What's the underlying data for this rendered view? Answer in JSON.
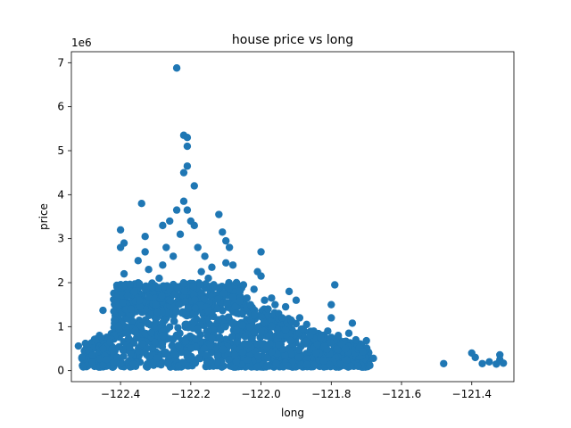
{
  "chart_data": {
    "type": "scatter",
    "title": "house price vs long",
    "xlabel": "long",
    "ylabel": "price",
    "y_scale_label": "1e6",
    "xlim": [
      -122.54,
      -121.28
    ],
    "ylim": [
      -250000,
      7250000
    ],
    "x_ticks": [
      -122.4,
      -122.2,
      -122.0,
      -121.8,
      -121.6,
      -121.4
    ],
    "x_tick_labels": [
      "−122.4",
      "−122.2",
      "−122.0",
      "−121.8",
      "−121.6",
      "−121.4"
    ],
    "y_ticks": [
      0,
      1000000,
      2000000,
      3000000,
      4000000,
      5000000,
      6000000,
      7000000
    ],
    "y_tick_labels": [
      "0",
      "1",
      "2",
      "3",
      "4",
      "5",
      "6",
      "7"
    ],
    "marker_color": "#1f77b4",
    "grid": false,
    "series": [
      {
        "points": [
          [
            -122.52,
            560000
          ],
          [
            -122.51,
            300000
          ],
          [
            -122.5,
            620000
          ],
          [
            -122.49,
            450000
          ],
          [
            -122.48,
            350000
          ],
          [
            -122.47,
            700000
          ],
          [
            -122.46,
            800000
          ],
          [
            -122.45,
            500000
          ],
          [
            -122.45,
            1370000
          ],
          [
            -122.44,
            250000
          ],
          [
            -122.43,
            650000
          ],
          [
            -122.42,
            400000
          ],
          [
            -122.41,
            300000
          ],
          [
            -122.4,
            2800000
          ],
          [
            -122.4,
            3200000
          ],
          [
            -122.39,
            2900000
          ],
          [
            -122.39,
            2200000
          ],
          [
            -122.38,
            1700000
          ],
          [
            -122.37,
            1400000
          ],
          [
            -122.36,
            1800000
          ],
          [
            -122.35,
            2500000
          ],
          [
            -122.34,
            3800000
          ],
          [
            -122.33,
            3050000
          ],
          [
            -122.33,
            2700000
          ],
          [
            -122.32,
            2300000
          ],
          [
            -122.31,
            1900000
          ],
          [
            -122.3,
            1500000
          ],
          [
            -122.29,
            2100000
          ],
          [
            -122.28,
            2400000
          ],
          [
            -122.28,
            3300000
          ],
          [
            -122.27,
            2800000
          ],
          [
            -122.26,
            3400000
          ],
          [
            -122.25,
            2600000
          ],
          [
            -122.24,
            6880000
          ],
          [
            -122.24,
            3650000
          ],
          [
            -122.23,
            3100000
          ],
          [
            -122.22,
            5350000
          ],
          [
            -122.21,
            5300000
          ],
          [
            -122.21,
            5100000
          ],
          [
            -122.21,
            4650000
          ],
          [
            -122.22,
            4500000
          ],
          [
            -122.22,
            3850000
          ],
          [
            -122.21,
            3650000
          ],
          [
            -122.2,
            3400000
          ],
          [
            -122.19,
            4200000
          ],
          [
            -122.19,
            3300000
          ],
          [
            -122.18,
            2800000
          ],
          [
            -122.17,
            2250000
          ],
          [
            -122.16,
            2600000
          ],
          [
            -122.15,
            2100000
          ],
          [
            -122.14,
            2350000
          ],
          [
            -122.13,
            1900000
          ],
          [
            -122.12,
            3550000
          ],
          [
            -122.11,
            3150000
          ],
          [
            -122.1,
            2950000
          ],
          [
            -122.1,
            2450000
          ],
          [
            -122.09,
            2800000
          ],
          [
            -122.08,
            2400000
          ],
          [
            -122.07,
            2000000
          ],
          [
            -122.06,
            1800000
          ],
          [
            -122.05,
            1950000
          ],
          [
            -122.04,
            1650000
          ],
          [
            -122.03,
            1500000
          ],
          [
            -122.02,
            1850000
          ],
          [
            -122.01,
            2250000
          ],
          [
            -122.0,
            2700000
          ],
          [
            -122.0,
            2150000
          ],
          [
            -121.99,
            1600000
          ],
          [
            -121.98,
            1400000
          ],
          [
            -121.97,
            1650000
          ],
          [
            -121.96,
            1500000
          ],
          [
            -121.95,
            1300000
          ],
          [
            -121.94,
            1200000
          ],
          [
            -121.93,
            1450000
          ],
          [
            -121.92,
            1800000
          ],
          [
            -121.91,
            1100000
          ],
          [
            -121.9,
            1600000
          ],
          [
            -121.89,
            1200000
          ],
          [
            -121.88,
            950000
          ],
          [
            -121.87,
            1050000
          ],
          [
            -121.86,
            800000
          ],
          [
            -121.85,
            900000
          ],
          [
            -121.84,
            600000
          ],
          [
            -121.83,
            750000
          ],
          [
            -121.82,
            550000
          ],
          [
            -121.81,
            900000
          ],
          [
            -121.8,
            1500000
          ],
          [
            -121.8,
            1200000
          ],
          [
            -121.79,
            1950000
          ],
          [
            -121.78,
            800000
          ],
          [
            -121.77,
            600000
          ],
          [
            -121.76,
            500000
          ],
          [
            -121.75,
            850000
          ],
          [
            -121.74,
            1080000
          ],
          [
            -121.73,
            700000
          ],
          [
            -121.72,
            520000
          ],
          [
            -121.71,
            430000
          ],
          [
            -121.7,
            680000
          ],
          [
            -121.68,
            280000
          ],
          [
            -121.48,
            160000
          ],
          [
            -121.4,
            400000
          ],
          [
            -121.39,
            300000
          ],
          [
            -121.37,
            160000
          ],
          [
            -121.35,
            200000
          ],
          [
            -121.33,
            150000
          ],
          [
            -121.32,
            360000
          ],
          [
            -121.32,
            250000
          ],
          [
            -121.31,
            170000
          ]
        ]
      }
    ]
  }
}
